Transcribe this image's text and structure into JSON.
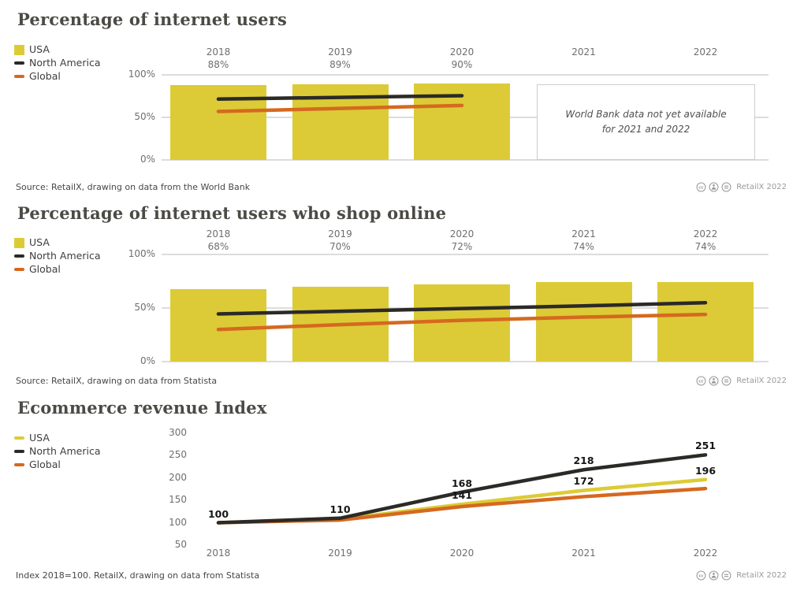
{
  "license": {
    "label": "RetailX 2022",
    "icons": [
      "cc-icon",
      "attribution-person-icon",
      "no-derivatives-icon"
    ]
  },
  "colors": {
    "usa_yellow": "#dccb37",
    "north_america_black": "#2b2a27",
    "global_orange": "#d5691f",
    "grid_gray": "#dcdcdc"
  },
  "chart_data": [
    {
      "type": "bar+line",
      "title": "Percentage of internet users",
      "source": "Source: RetailX, drawing on data from the World Bank",
      "note": "World Bank data not yet available for 2021 and 2022",
      "categories": [
        "2018",
        "2019",
        "2020",
        "2021",
        "2022"
      ],
      "ylim": [
        0,
        100
      ],
      "grid": true,
      "legend_position": "top-left",
      "yticks": [
        {
          "label": "100%",
          "value": 100
        },
        {
          "label": "50%",
          "value": 50
        },
        {
          "label": "0%",
          "value": 0
        }
      ],
      "legend": [
        {
          "label": "USA",
          "marker": "square",
          "color": "#dccb37"
        },
        {
          "label": "North America",
          "marker": "line",
          "color": "#2b2a27"
        },
        {
          "label": "Global",
          "marker": "line",
          "color": "#d5691f"
        }
      ],
      "bars": {
        "name": "USA",
        "color": "#dccb37",
        "values": [
          88,
          89,
          90,
          null,
          null
        ],
        "labels": [
          "88%",
          "89%",
          "90%",
          null,
          null
        ]
      },
      "series": [
        {
          "name": "North America",
          "color": "#2b2a27",
          "values": [
            71.5,
            73.5,
            75.5,
            null,
            null
          ]
        },
        {
          "name": "Global",
          "color": "#d5691f",
          "values": [
            57,
            60.5,
            64,
            null,
            null
          ]
        }
      ]
    },
    {
      "type": "bar+line",
      "title": "Percentage of internet users who shop online",
      "source": "Source: RetailX, drawing on data from Statista",
      "categories": [
        "2018",
        "2019",
        "2020",
        "2021",
        "2022"
      ],
      "ylim": [
        0,
        100
      ],
      "grid": true,
      "legend_position": "top-left",
      "yticks": [
        {
          "label": "100%",
          "value": 100
        },
        {
          "label": "50%",
          "value": 50
        },
        {
          "label": "0%",
          "value": 0
        }
      ],
      "legend": [
        {
          "label": "USA",
          "marker": "square",
          "color": "#dccb37"
        },
        {
          "label": "North America",
          "marker": "line",
          "color": "#2b2a27"
        },
        {
          "label": "Global",
          "marker": "line",
          "color": "#d5691f"
        }
      ],
      "bars": {
        "name": "USA",
        "color": "#dccb37",
        "values": [
          68,
          70,
          72,
          74,
          74
        ],
        "labels": [
          "68%",
          "70%",
          "72%",
          "74%",
          "74%"
        ]
      },
      "series": [
        {
          "name": "North America",
          "color": "#2b2a27",
          "values": [
            44.5,
            47,
            49.5,
            52,
            55
          ]
        },
        {
          "name": "Global",
          "color": "#d5691f",
          "values": [
            30,
            34.5,
            38.5,
            41.5,
            44
          ]
        }
      ]
    },
    {
      "type": "line",
      "title": "Ecommerce revenue Index",
      "source": "Index 2018=100. RetailX, drawing on data from Statista",
      "categories": [
        "2018",
        "2019",
        "2020",
        "2021",
        "2022"
      ],
      "ylim": [
        50,
        300
      ],
      "grid": false,
      "legend_position": "top-left",
      "yticks": [
        {
          "label": "300",
          "value": 300
        },
        {
          "label": "250",
          "value": 250
        },
        {
          "label": "200",
          "value": 200
        },
        {
          "label": "150",
          "value": 150
        },
        {
          "label": "100",
          "value": 100
        },
        {
          "label": "50",
          "value": 50
        }
      ],
      "legend": [
        {
          "label": "USA",
          "marker": "line",
          "color": "#dccb37"
        },
        {
          "label": "North America",
          "marker": "line",
          "color": "#2b2a27"
        },
        {
          "label": "Global",
          "marker": "line",
          "color": "#d5691f"
        }
      ],
      "series": [
        {
          "name": "USA",
          "color": "#dccb37",
          "values": [
            100,
            108,
            141,
            172,
            196
          ],
          "labels": [
            null,
            null,
            "141",
            "172",
            "196"
          ]
        },
        {
          "name": "Global",
          "color": "#d5691f",
          "values": [
            100,
            106,
            136,
            158,
            176
          ],
          "labels": [
            null,
            null,
            null,
            null,
            null
          ]
        },
        {
          "name": "North America",
          "color": "#2b2a27",
          "values": [
            100,
            110,
            168,
            218,
            251
          ],
          "labels": [
            "100",
            "110",
            "168",
            "218",
            "251"
          ]
        }
      ]
    }
  ]
}
